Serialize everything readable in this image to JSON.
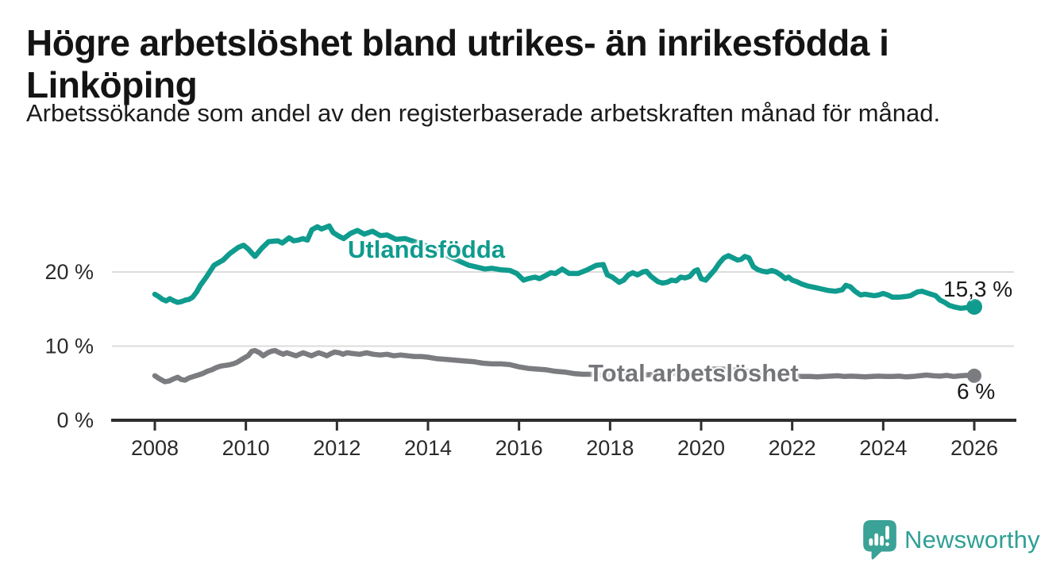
{
  "title": "Högre arbetslöshet bland utrikes- än inrikesfödda i Linköping",
  "subtitle": "Arbetssökande som andel av den registerbaserade arbetskraften månad för månad.",
  "branding": {
    "logo_text": "Newsworthy",
    "logo_color": "#3aa296"
  },
  "chart_data": {
    "type": "line",
    "title": "Högre arbetslöshet bland utrikes- än inrikesfödda i Linköping",
    "xlabel": "",
    "ylabel": "",
    "grid": "horizontal",
    "legend_position": "inline-labels",
    "xlim": [
      2007.0,
      2026.95
    ],
    "ylim": [
      0,
      27.5
    ],
    "x_ticks": [
      2008,
      2010,
      2012,
      2014,
      2016,
      2018,
      2020,
      2022,
      2024,
      2026
    ],
    "y_ticks": [
      {
        "value": 0,
        "label": "0 %"
      },
      {
        "value": 10,
        "label": "10 %"
      },
      {
        "value": 20,
        "label": "20 %"
      }
    ],
    "series": [
      {
        "name": "Utlandsfödda",
        "color": "#0f9b8e",
        "end_label": "15,3 %",
        "end_value": 15.3,
        "points": [
          [
            2008.0,
            17.0
          ],
          [
            2008.08,
            16.7
          ],
          [
            2008.17,
            16.3
          ],
          [
            2008.25,
            16.1
          ],
          [
            2008.33,
            16.4
          ],
          [
            2008.42,
            16.1
          ],
          [
            2008.5,
            15.9
          ],
          [
            2008.58,
            16.0
          ],
          [
            2008.67,
            16.2
          ],
          [
            2008.75,
            16.3
          ],
          [
            2008.83,
            16.6
          ],
          [
            2008.92,
            17.3
          ],
          [
            2009.0,
            18.2
          ],
          [
            2009.13,
            19.3
          ],
          [
            2009.3,
            20.9
          ],
          [
            2009.5,
            21.6
          ],
          [
            2009.65,
            22.5
          ],
          [
            2009.83,
            23.3
          ],
          [
            2009.95,
            23.6
          ],
          [
            2010.05,
            23.1
          ],
          [
            2010.2,
            22.1
          ],
          [
            2010.35,
            23.2
          ],
          [
            2010.5,
            24.1
          ],
          [
            2010.7,
            24.2
          ],
          [
            2010.8,
            23.9
          ],
          [
            2010.95,
            24.6
          ],
          [
            2011.05,
            24.2
          ],
          [
            2011.15,
            24.3
          ],
          [
            2011.25,
            24.5
          ],
          [
            2011.35,
            24.3
          ],
          [
            2011.45,
            25.7
          ],
          [
            2011.57,
            26.1
          ],
          [
            2011.66,
            25.8
          ],
          [
            2011.83,
            26.2
          ],
          [
            2011.92,
            25.3
          ],
          [
            2012.05,
            24.8
          ],
          [
            2012.15,
            24.5
          ],
          [
            2012.3,
            25.2
          ],
          [
            2012.45,
            25.6
          ],
          [
            2012.6,
            25.1
          ],
          [
            2012.78,
            25.5
          ],
          [
            2012.95,
            24.9
          ],
          [
            2013.1,
            25.0
          ],
          [
            2013.3,
            24.4
          ],
          [
            2013.5,
            24.5
          ],
          [
            2013.7,
            24.1
          ],
          [
            2013.9,
            23.7
          ],
          [
            2014.1,
            23.1
          ],
          [
            2014.35,
            22.4
          ],
          [
            2014.6,
            21.7
          ],
          [
            2014.9,
            20.9
          ],
          [
            2015.05,
            20.7
          ],
          [
            2015.25,
            20.4
          ],
          [
            2015.4,
            20.5
          ],
          [
            2015.6,
            20.3
          ],
          [
            2015.8,
            20.2
          ],
          [
            2015.95,
            19.8
          ],
          [
            2016.1,
            18.9
          ],
          [
            2016.2,
            19.1
          ],
          [
            2016.35,
            19.3
          ],
          [
            2016.45,
            19.1
          ],
          [
            2016.55,
            19.4
          ],
          [
            2016.7,
            19.9
          ],
          [
            2016.8,
            19.8
          ],
          [
            2016.95,
            20.4
          ],
          [
            2017.1,
            19.8
          ],
          [
            2017.3,
            19.8
          ],
          [
            2017.5,
            20.3
          ],
          [
            2017.7,
            20.9
          ],
          [
            2017.85,
            21.0
          ],
          [
            2017.94,
            19.6
          ],
          [
            2018.05,
            19.3
          ],
          [
            2018.2,
            18.6
          ],
          [
            2018.3,
            18.9
          ],
          [
            2018.4,
            19.6
          ],
          [
            2018.5,
            19.9
          ],
          [
            2018.6,
            19.6
          ],
          [
            2018.72,
            20.0
          ],
          [
            2018.8,
            20.1
          ],
          [
            2018.9,
            19.4
          ],
          [
            2019.05,
            18.7
          ],
          [
            2019.15,
            18.5
          ],
          [
            2019.25,
            18.6
          ],
          [
            2019.35,
            18.9
          ],
          [
            2019.45,
            18.8
          ],
          [
            2019.55,
            19.3
          ],
          [
            2019.65,
            19.2
          ],
          [
            2019.75,
            19.4
          ],
          [
            2019.85,
            20.1
          ],
          [
            2019.92,
            20.3
          ],
          [
            2020.0,
            19.1
          ],
          [
            2020.1,
            18.9
          ],
          [
            2020.2,
            19.6
          ],
          [
            2020.3,
            20.3
          ],
          [
            2020.4,
            21.2
          ],
          [
            2020.5,
            21.9
          ],
          [
            2020.6,
            22.2
          ],
          [
            2020.7,
            21.9
          ],
          [
            2020.8,
            21.6
          ],
          [
            2020.88,
            21.7
          ],
          [
            2020.96,
            22.1
          ],
          [
            2021.05,
            21.9
          ],
          [
            2021.15,
            20.7
          ],
          [
            2021.25,
            20.3
          ],
          [
            2021.35,
            20.1
          ],
          [
            2021.45,
            20.0
          ],
          [
            2021.55,
            20.2
          ],
          [
            2021.65,
            20.0
          ],
          [
            2021.75,
            19.6
          ],
          [
            2021.85,
            19.1
          ],
          [
            2021.92,
            19.3
          ],
          [
            2022.0,
            18.9
          ],
          [
            2022.1,
            18.7
          ],
          [
            2022.2,
            18.4
          ],
          [
            2022.35,
            18.1
          ],
          [
            2022.5,
            17.9
          ],
          [
            2022.65,
            17.7
          ],
          [
            2022.8,
            17.5
          ],
          [
            2022.95,
            17.4
          ],
          [
            2023.1,
            17.6
          ],
          [
            2023.18,
            18.2
          ],
          [
            2023.28,
            18.0
          ],
          [
            2023.38,
            17.4
          ],
          [
            2023.5,
            16.9
          ],
          [
            2023.6,
            17.0
          ],
          [
            2023.7,
            16.9
          ],
          [
            2023.8,
            16.8
          ],
          [
            2023.9,
            16.9
          ],
          [
            2024.0,
            17.1
          ],
          [
            2024.1,
            16.9
          ],
          [
            2024.2,
            16.6
          ],
          [
            2024.35,
            16.6
          ],
          [
            2024.5,
            16.7
          ],
          [
            2024.6,
            16.8
          ],
          [
            2024.75,
            17.3
          ],
          [
            2024.85,
            17.4
          ],
          [
            2024.95,
            17.2
          ],
          [
            2025.05,
            17.0
          ],
          [
            2025.15,
            16.8
          ],
          [
            2025.25,
            16.2
          ],
          [
            2025.35,
            15.9
          ],
          [
            2025.45,
            15.5
          ],
          [
            2025.55,
            15.3
          ],
          [
            2025.7,
            15.1
          ],
          [
            2025.85,
            15.2
          ],
          [
            2026.0,
            15.3
          ]
        ]
      },
      {
        "name": "Total arbetslöshet",
        "color": "#7b7c80",
        "end_label": "6 %",
        "end_value": 6.0,
        "points": [
          [
            2008.0,
            6.0
          ],
          [
            2008.1,
            5.6
          ],
          [
            2008.22,
            5.2
          ],
          [
            2008.32,
            5.3
          ],
          [
            2008.42,
            5.6
          ],
          [
            2008.5,
            5.8
          ],
          [
            2008.58,
            5.5
          ],
          [
            2008.66,
            5.4
          ],
          [
            2008.75,
            5.7
          ],
          [
            2008.85,
            5.9
          ],
          [
            2008.95,
            6.1
          ],
          [
            2009.05,
            6.3
          ],
          [
            2009.15,
            6.6
          ],
          [
            2009.25,
            6.8
          ],
          [
            2009.35,
            7.1
          ],
          [
            2009.45,
            7.3
          ],
          [
            2009.55,
            7.4
          ],
          [
            2009.65,
            7.5
          ],
          [
            2009.72,
            7.6
          ],
          [
            2009.8,
            7.8
          ],
          [
            2009.88,
            8.1
          ],
          [
            2009.96,
            8.4
          ],
          [
            2010.05,
            8.7
          ],
          [
            2010.13,
            9.3
          ],
          [
            2010.2,
            9.4
          ],
          [
            2010.3,
            9.1
          ],
          [
            2010.38,
            8.7
          ],
          [
            2010.48,
            9.1
          ],
          [
            2010.56,
            9.3
          ],
          [
            2010.64,
            9.4
          ],
          [
            2010.74,
            9.1
          ],
          [
            2010.82,
            8.9
          ],
          [
            2010.9,
            9.1
          ],
          [
            2011.0,
            8.9
          ],
          [
            2011.1,
            8.7
          ],
          [
            2011.18,
            8.9
          ],
          [
            2011.26,
            9.1
          ],
          [
            2011.35,
            8.9
          ],
          [
            2011.44,
            8.7
          ],
          [
            2011.52,
            8.9
          ],
          [
            2011.6,
            9.1
          ],
          [
            2011.7,
            8.9
          ],
          [
            2011.78,
            8.7
          ],
          [
            2011.87,
            9.0
          ],
          [
            2011.95,
            9.2
          ],
          [
            2012.05,
            9.1
          ],
          [
            2012.13,
            8.9
          ],
          [
            2012.22,
            9.1
          ],
          [
            2012.35,
            9.0
          ],
          [
            2012.5,
            8.9
          ],
          [
            2012.65,
            9.1
          ],
          [
            2012.8,
            8.9
          ],
          [
            2012.95,
            8.8
          ],
          [
            2013.1,
            8.9
          ],
          [
            2013.25,
            8.7
          ],
          [
            2013.4,
            8.8
          ],
          [
            2013.55,
            8.7
          ],
          [
            2013.7,
            8.6
          ],
          [
            2013.85,
            8.6
          ],
          [
            2014.0,
            8.5
          ],
          [
            2014.2,
            8.3
          ],
          [
            2014.4,
            8.2
          ],
          [
            2014.6,
            8.1
          ],
          [
            2014.8,
            8.0
          ],
          [
            2015.0,
            7.9
          ],
          [
            2015.2,
            7.7
          ],
          [
            2015.4,
            7.6
          ],
          [
            2015.6,
            7.6
          ],
          [
            2015.8,
            7.5
          ],
          [
            2016.0,
            7.2
          ],
          [
            2016.2,
            7.0
          ],
          [
            2016.4,
            6.9
          ],
          [
            2016.6,
            6.8
          ],
          [
            2016.8,
            6.6
          ],
          [
            2017.0,
            6.5
          ],
          [
            2017.2,
            6.3
          ],
          [
            2017.4,
            6.2
          ],
          [
            2017.6,
            6.2
          ],
          [
            2017.8,
            6.1
          ],
          [
            2018.0,
            6.1
          ],
          [
            2018.25,
            6.0
          ],
          [
            2018.5,
            6.1
          ],
          [
            2018.75,
            6.1
          ],
          [
            2019.0,
            6.2
          ],
          [
            2019.25,
            6.3
          ],
          [
            2019.5,
            6.3
          ],
          [
            2019.75,
            6.4
          ],
          [
            2020.0,
            6.6
          ],
          [
            2020.25,
            6.9
          ],
          [
            2020.5,
            6.9
          ],
          [
            2020.75,
            6.8
          ],
          [
            2021.0,
            6.6
          ],
          [
            2021.25,
            6.4
          ],
          [
            2021.5,
            6.2
          ],
          [
            2021.75,
            6.1
          ],
          [
            2022.0,
            6.0
          ],
          [
            2022.2,
            5.9
          ],
          [
            2022.4,
            5.9
          ],
          [
            2022.55,
            5.85
          ],
          [
            2022.7,
            5.9
          ],
          [
            2022.85,
            5.95
          ],
          [
            2023.0,
            6.0
          ],
          [
            2023.15,
            5.9
          ],
          [
            2023.3,
            5.95
          ],
          [
            2023.45,
            5.9
          ],
          [
            2023.6,
            5.85
          ],
          [
            2023.75,
            5.9
          ],
          [
            2023.9,
            5.95
          ],
          [
            2024.05,
            5.9
          ],
          [
            2024.2,
            5.9
          ],
          [
            2024.35,
            5.95
          ],
          [
            2024.5,
            5.85
          ],
          [
            2024.65,
            5.9
          ],
          [
            2024.8,
            6.0
          ],
          [
            2024.95,
            6.1
          ],
          [
            2025.1,
            6.0
          ],
          [
            2025.25,
            5.95
          ],
          [
            2025.4,
            6.05
          ],
          [
            2025.55,
            5.9
          ],
          [
            2025.7,
            6.0
          ],
          [
            2025.85,
            6.05
          ],
          [
            2026.0,
            6.0
          ]
        ]
      }
    ]
  }
}
